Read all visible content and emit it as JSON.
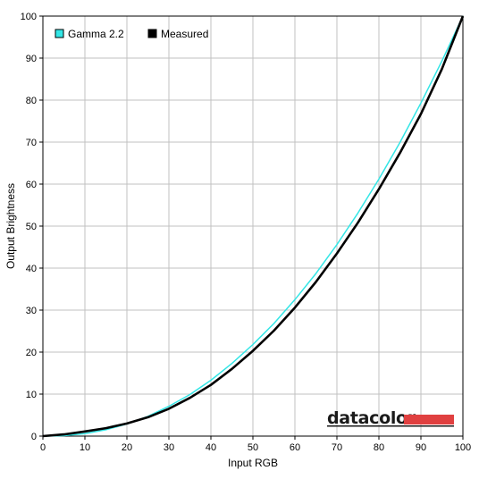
{
  "chart_data": {
    "type": "line",
    "xlabel": "Input RGB",
    "ylabel": "Output Brightness",
    "xlim": [
      0,
      100
    ],
    "ylim": [
      0,
      100
    ],
    "xticks": [
      "0",
      "10",
      "20",
      "30",
      "40",
      "50",
      "60",
      "70",
      "80",
      "90",
      "100"
    ],
    "yticks": [
      "0",
      "10",
      "20",
      "30",
      "40",
      "50",
      "60",
      "70",
      "80",
      "90",
      "100"
    ],
    "grid": true,
    "legend_position": "top-left",
    "series": [
      {
        "name": "Gamma 2.2",
        "color": "#33e6e6",
        "x": [
          0,
          5,
          10,
          15,
          20,
          25,
          30,
          35,
          40,
          45,
          50,
          55,
          60,
          65,
          70,
          75,
          80,
          85,
          90,
          95,
          100
        ],
        "y": [
          0,
          0.1,
          0.6,
          1.5,
          2.9,
          4.7,
          7.1,
          9.9,
          13.3,
          17.3,
          21.8,
          26.8,
          32.5,
          38.7,
          45.6,
          53.1,
          61.2,
          69.9,
          79.3,
          89.3,
          100
        ]
      },
      {
        "name": "Measured",
        "color": "#000000",
        "x": [
          0,
          5,
          10,
          15,
          20,
          25,
          30,
          35,
          40,
          45,
          50,
          55,
          60,
          65,
          70,
          75,
          80,
          85,
          90,
          95,
          100
        ],
        "y": [
          0,
          0.4,
          1.1,
          1.9,
          3.0,
          4.5,
          6.5,
          9.1,
          12.2,
          16.0,
          20.3,
          25.1,
          30.6,
          36.7,
          43.5,
          50.8,
          58.8,
          67.4,
          76.7,
          87.4,
          100
        ]
      }
    ]
  },
  "watermark": {
    "text": "datacolor",
    "bar_color": "#e04040"
  }
}
